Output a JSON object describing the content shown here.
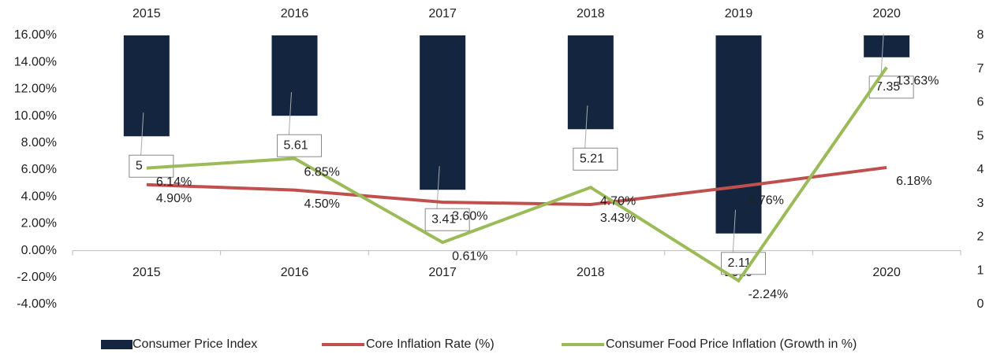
{
  "chart_data": {
    "type": "bar",
    "categories": [
      "2015",
      "2016",
      "2017",
      "2018",
      "2019",
      "2020"
    ],
    "series": [
      {
        "name": "Consumer Price Index",
        "type": "bar",
        "axis": "y2",
        "color": "#13253f",
        "values": [
          5,
          5.61,
          3.41,
          5.21,
          2.11,
          7.35
        ]
      },
      {
        "name": "Core Inflation Rate (%)",
        "type": "line",
        "color": "#c0504d",
        "values": [
          4.9,
          4.5,
          3.6,
          3.43,
          4.76,
          6.18
        ],
        "value_labels": [
          "4.90%",
          "4.50%",
          "3.60%",
          "3.43%",
          "4.76%",
          "6.18%"
        ]
      },
      {
        "name": "Consumer Food Price Inflation (Growth in %)",
        "type": "line",
        "color": "#9bbb59",
        "values": [
          6.14,
          6.85,
          0.61,
          4.7,
          -2.24,
          13.63
        ],
        "value_labels": [
          "6.14%",
          "6.85%",
          "0.61%",
          "4.70%",
          "-2.24%",
          "13.63%"
        ]
      }
    ],
    "ylim": [
      -4,
      16
    ],
    "yticks": [
      {
        "value": -4,
        "label": "-4.00%"
      },
      {
        "value": -2,
        "label": "-2.00%"
      },
      {
        "value": 0,
        "label": "0.00%"
      },
      {
        "value": 2,
        "label": "2.00%"
      },
      {
        "value": 4,
        "label": "4.00%"
      },
      {
        "value": 6,
        "label": "6.00%"
      },
      {
        "value": 8,
        "label": "8.00%"
      },
      {
        "value": 10,
        "label": "10.00%"
      },
      {
        "value": 12,
        "label": "12.00%"
      },
      {
        "value": 14,
        "label": "14.00%"
      },
      {
        "value": 16,
        "label": "16.00%"
      }
    ],
    "y2lim": [
      0,
      8
    ],
    "y2ticks": [
      0,
      1,
      2,
      3,
      4,
      5,
      6,
      7,
      8
    ],
    "legend": "bottom"
  }
}
